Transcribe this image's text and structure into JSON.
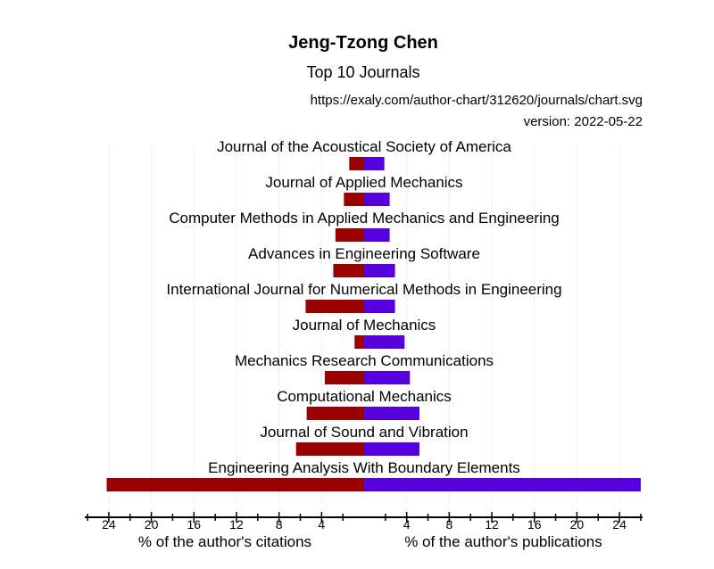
{
  "header": {
    "author": "Jeng-Tzong Chen",
    "subtitle": "Top 10 Journals",
    "url": "https://exaly.com/author-chart/312620/journals/chart.svg",
    "version": "version: 2022-05-22"
  },
  "axes": {
    "left_label": "% of the author's citations",
    "right_label": "% of the author's publications"
  },
  "colors": {
    "citations": "#990000",
    "publications": "#5500dd"
  },
  "chart_data": {
    "type": "bar",
    "orientation": "horizontal-diverging",
    "title": "Jeng-Tzong Chen",
    "subtitle": "Top 10 Journals",
    "categories": [
      "Journal of the Acoustical Society of America",
      "Journal of Applied Mechanics",
      "Computer Methods in Applied Mechanics and Engineering",
      "Advances in Engineering Software",
      "International Journal for Numerical Methods in Engineering",
      "Journal of Mechanics",
      "Mechanics Research Communications",
      "Computational Mechanics",
      "Journal of Sound and Vibration",
      "Engineering Analysis With Boundary Elements"
    ],
    "series": [
      {
        "name": "% of the author's citations",
        "side": "left",
        "values": [
          1.4,
          1.9,
          2.7,
          2.9,
          5.5,
          0.9,
          3.7,
          5.4,
          6.4,
          24.2
        ]
      },
      {
        "name": "% of the author's publications",
        "side": "right",
        "values": [
          1.9,
          2.4,
          2.4,
          2.9,
          2.9,
          3.8,
          4.3,
          5.2,
          5.2,
          26.0
        ]
      }
    ],
    "xlim_left": [
      0,
      26
    ],
    "xlim_right": [
      0,
      26
    ],
    "ticks": [
      4,
      8,
      12,
      16,
      20,
      24
    ],
    "tick_labels": [
      "4",
      "8",
      "12",
      "16",
      "20",
      "24"
    ],
    "grid": true
  }
}
